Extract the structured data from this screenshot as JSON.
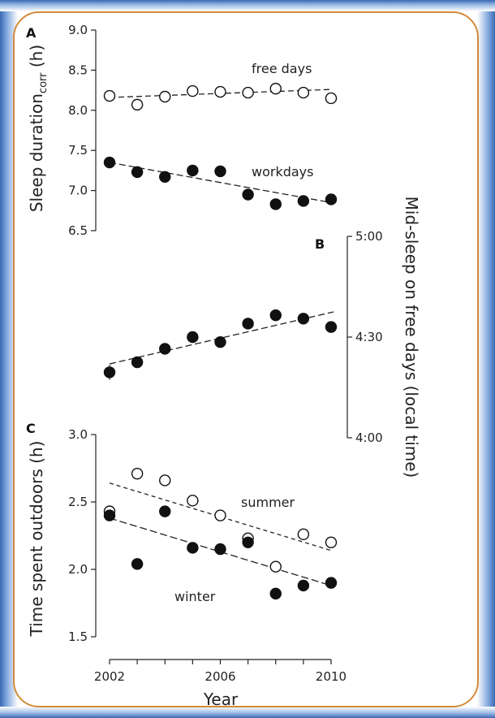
{
  "chart_data": [
    {
      "panel": "A",
      "type": "scatter",
      "ylabel_main": "Sleep duration",
      "ylabel_sub": "corr",
      "ylabel_unit": " (h)",
      "ylim": [
        6.5,
        9.0
      ],
      "yticks": [
        "6.5",
        "7.0",
        "7.5",
        "8.0",
        "8.5",
        "9.0"
      ],
      "x": [
        2002,
        2003,
        2004,
        2005,
        2006,
        2007,
        2008,
        2009,
        2010
      ],
      "series": [
        {
          "name": "free days",
          "marker": "open",
          "values": [
            8.18,
            8.07,
            8.17,
            8.24,
            8.23,
            8.22,
            8.27,
            8.22,
            8.15
          ],
          "trend": [
            8.16,
            8.26
          ]
        },
        {
          "name": "workdays",
          "marker": "filled",
          "values": [
            7.35,
            7.23,
            7.17,
            7.25,
            7.24,
            6.95,
            6.83,
            6.87,
            6.89
          ],
          "trend": [
            7.35,
            6.85
          ]
        }
      ]
    },
    {
      "panel": "B",
      "type": "scatter",
      "ylabel": "Mid-sleep on free days (local time)",
      "yticks": [
        "4:00",
        "4:30",
        "5:00"
      ],
      "ylim_minutes": [
        240,
        300
      ],
      "x": [
        2002,
        2003,
        2004,
        2005,
        2006,
        2007,
        2008,
        2009,
        2010
      ],
      "series": [
        {
          "name": "",
          "marker": "filled",
          "values_minutes": [
            259.5,
            262.5,
            266.5,
            270.0,
            268.5,
            274.0,
            276.5,
            275.5,
            273.0
          ],
          "trend": [
            262.0,
            277.5
          ]
        }
      ]
    },
    {
      "panel": "C",
      "type": "scatter",
      "ylabel": "Time spent outdoors (h)",
      "ylim": [
        1.5,
        3.0
      ],
      "yticks": [
        "1.5",
        "2.0",
        "2.5",
        "3.0"
      ],
      "xlabel": "Year",
      "xticks": [
        "2002",
        "2006",
        "2010"
      ],
      "x": [
        2002,
        2003,
        2004,
        2005,
        2006,
        2007,
        2008,
        2009,
        2010
      ],
      "series": [
        {
          "name": "summer",
          "marker": "open",
          "values": [
            2.43,
            2.71,
            2.66,
            2.51,
            2.4,
            2.23,
            2.02,
            2.26,
            2.2
          ],
          "trend": [
            2.64,
            2.14
          ]
        },
        {
          "name": "winter",
          "marker": "filled",
          "values": [
            2.4,
            2.04,
            2.43,
            2.16,
            2.15,
            2.2,
            1.82,
            1.88,
            1.9
          ],
          "trend": [
            2.38,
            1.88
          ]
        }
      ]
    }
  ]
}
